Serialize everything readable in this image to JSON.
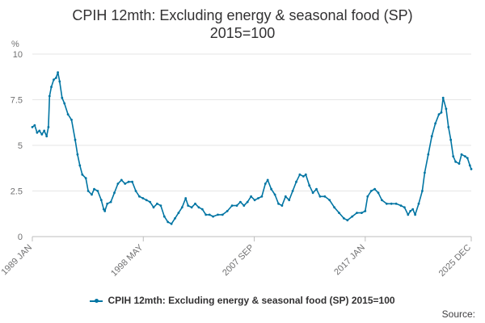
{
  "chart_data": {
    "type": "line",
    "title_line1": "CPIH 12mth: Excluding energy & seasonal food (SP)",
    "title_line2": "2015=100",
    "ylabel": "%",
    "xlabel": "",
    "ylim": [
      0,
      10
    ],
    "y_ticks": [
      "0",
      "2.5",
      "5",
      "7.5",
      "10"
    ],
    "y_tick_values": [
      0,
      2.5,
      5,
      7.5,
      10
    ],
    "x_range": [
      1989.0,
      2025.917
    ],
    "x_ticks": [
      {
        "label": "1989 JAN",
        "value": 1989.0
      },
      {
        "label": "1998 MAY",
        "value": 1998.333
      },
      {
        "label": "2007 SEP",
        "value": 2007.667
      },
      {
        "label": "2017 JAN",
        "value": 2017.0
      },
      {
        "label": "2025 DEC",
        "value": 2025.917
      }
    ],
    "grid": true,
    "legend_position": "bottom",
    "series": [
      {
        "name": "CPIH 12mth: Excluding energy & seasonal food (SP) 2015=100",
        "color": "#0075a3",
        "points": [
          [
            1989.0,
            6.0
          ],
          [
            1989.2,
            6.1
          ],
          [
            1989.4,
            5.7
          ],
          [
            1989.6,
            5.8
          ],
          [
            1989.8,
            5.6
          ],
          [
            1990.0,
            5.8
          ],
          [
            1990.2,
            5.5
          ],
          [
            1990.35,
            6.0
          ],
          [
            1990.45,
            7.7
          ],
          [
            1990.6,
            8.2
          ],
          [
            1990.8,
            8.6
          ],
          [
            1991.0,
            8.7
          ],
          [
            1991.15,
            9.0
          ],
          [
            1991.3,
            8.5
          ],
          [
            1991.5,
            7.6
          ],
          [
            1991.7,
            7.3
          ],
          [
            1992.0,
            6.7
          ],
          [
            1992.3,
            6.4
          ],
          [
            1992.6,
            5.3
          ],
          [
            1992.8,
            4.5
          ],
          [
            1993.0,
            3.9
          ],
          [
            1993.2,
            3.4
          ],
          [
            1993.5,
            3.2
          ],
          [
            1993.7,
            2.5
          ],
          [
            1994.0,
            2.3
          ],
          [
            1994.2,
            2.6
          ],
          [
            1994.5,
            2.5
          ],
          [
            1994.8,
            2.0
          ],
          [
            1995.0,
            1.5
          ],
          [
            1995.1,
            1.4
          ],
          [
            1995.3,
            1.8
          ],
          [
            1995.6,
            1.9
          ],
          [
            1995.9,
            2.4
          ],
          [
            1996.2,
            2.9
          ],
          [
            1996.5,
            3.1
          ],
          [
            1996.8,
            2.9
          ],
          [
            1997.1,
            3.0
          ],
          [
            1997.4,
            3.0
          ],
          [
            1997.7,
            2.5
          ],
          [
            1998.0,
            2.2
          ],
          [
            1998.3,
            2.1
          ],
          [
            1998.6,
            2.0
          ],
          [
            1998.9,
            1.9
          ],
          [
            1999.2,
            1.6
          ],
          [
            1999.5,
            1.8
          ],
          [
            1999.8,
            1.7
          ],
          [
            2000.1,
            1.1
          ],
          [
            2000.4,
            0.8
          ],
          [
            2000.7,
            0.7
          ],
          [
            2001.0,
            1.0
          ],
          [
            2001.3,
            1.3
          ],
          [
            2001.6,
            1.6
          ],
          [
            2001.9,
            2.1
          ],
          [
            2002.1,
            1.7
          ],
          [
            2002.4,
            1.6
          ],
          [
            2002.7,
            1.8
          ],
          [
            2003.0,
            1.6
          ],
          [
            2003.3,
            1.5
          ],
          [
            2003.6,
            1.2
          ],
          [
            2003.9,
            1.2
          ],
          [
            2004.2,
            1.1
          ],
          [
            2004.6,
            1.2
          ],
          [
            2005.0,
            1.2
          ],
          [
            2005.4,
            1.4
          ],
          [
            2005.8,
            1.7
          ],
          [
            2006.2,
            1.7
          ],
          [
            2006.5,
            1.9
          ],
          [
            2006.8,
            1.7
          ],
          [
            2007.1,
            1.9
          ],
          [
            2007.4,
            2.2
          ],
          [
            2007.7,
            2.0
          ],
          [
            2008.0,
            2.1
          ],
          [
            2008.3,
            2.2
          ],
          [
            2008.6,
            2.9
          ],
          [
            2008.8,
            3.1
          ],
          [
            2009.1,
            2.6
          ],
          [
            2009.4,
            2.3
          ],
          [
            2009.7,
            1.8
          ],
          [
            2010.0,
            1.7
          ],
          [
            2010.3,
            2.2
          ],
          [
            2010.6,
            2.0
          ],
          [
            2010.9,
            2.5
          ],
          [
            2011.2,
            3.0
          ],
          [
            2011.5,
            3.4
          ],
          [
            2011.8,
            3.3
          ],
          [
            2012.0,
            3.4
          ],
          [
            2012.3,
            2.8
          ],
          [
            2012.6,
            2.4
          ],
          [
            2012.9,
            2.6
          ],
          [
            2013.2,
            2.2
          ],
          [
            2013.6,
            2.2
          ],
          [
            2014.0,
            2.0
          ],
          [
            2014.4,
            1.6
          ],
          [
            2014.8,
            1.3
          ],
          [
            2015.2,
            1.0
          ],
          [
            2015.5,
            0.9
          ],
          [
            2015.9,
            1.1
          ],
          [
            2016.3,
            1.3
          ],
          [
            2016.7,
            1.3
          ],
          [
            2017.0,
            1.4
          ],
          [
            2017.2,
            2.2
          ],
          [
            2017.5,
            2.5
          ],
          [
            2017.8,
            2.6
          ],
          [
            2018.1,
            2.4
          ],
          [
            2018.4,
            2.0
          ],
          [
            2018.8,
            1.8
          ],
          [
            2019.2,
            1.8
          ],
          [
            2019.6,
            1.8
          ],
          [
            2020.0,
            1.7
          ],
          [
            2020.3,
            1.6
          ],
          [
            2020.6,
            1.2
          ],
          [
            2020.8,
            1.4
          ],
          [
            2021.0,
            1.5
          ],
          [
            2021.2,
            1.2
          ],
          [
            2021.5,
            1.8
          ],
          [
            2021.8,
            2.5
          ],
          [
            2022.0,
            3.5
          ],
          [
            2022.3,
            4.5
          ],
          [
            2022.6,
            5.5
          ],
          [
            2022.9,
            6.2
          ],
          [
            2023.2,
            6.7
          ],
          [
            2023.4,
            6.8
          ],
          [
            2023.55,
            7.6
          ],
          [
            2023.8,
            7.0
          ],
          [
            2024.0,
            6.0
          ],
          [
            2024.2,
            5.3
          ],
          [
            2024.4,
            4.4
          ],
          [
            2024.6,
            4.1
          ],
          [
            2024.9,
            4.0
          ],
          [
            2025.1,
            4.5
          ],
          [
            2025.4,
            4.4
          ],
          [
            2025.6,
            4.3
          ],
          [
            2025.8,
            3.9
          ],
          [
            2025.917,
            3.7
          ]
        ]
      }
    ],
    "legend_label": "CPIH 12mth: Excluding energy & seasonal food (SP) 2015=100",
    "source_label": "Source:"
  }
}
